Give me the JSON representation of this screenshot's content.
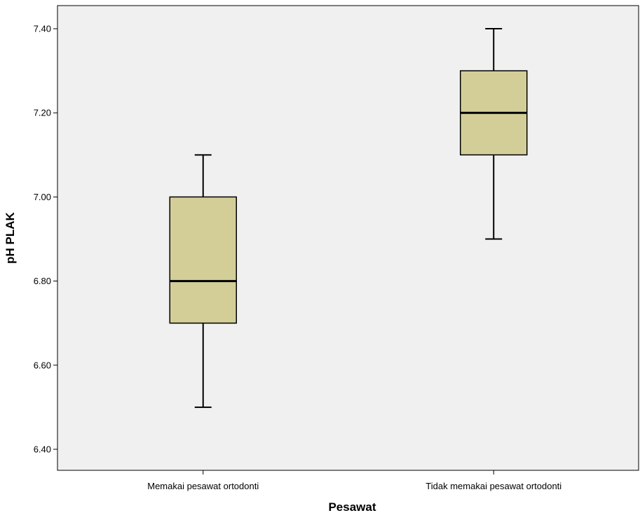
{
  "chart_data": {
    "type": "boxplot",
    "title": "",
    "xlabel": "Pesawat",
    "ylabel": "pH PLAK",
    "ylim": [
      6.35,
      7.455
    ],
    "yticks": [
      "6.40",
      "6.60",
      "6.80",
      "7.00",
      "7.20",
      "7.40"
    ],
    "categories": [
      "Memakai pesawat ortodonti",
      "Tidak memakai pesawat ortodonti"
    ],
    "boxes": [
      {
        "min": 6.5,
        "q1": 6.7,
        "median": 6.8,
        "q3": 7.0,
        "max": 7.1
      },
      {
        "min": 6.9,
        "q1": 7.1,
        "median": 7.2,
        "q3": 7.3,
        "max": 7.4
      }
    ],
    "grid": false,
    "colors": {
      "plot_background": "#f0f0f0",
      "box_fill": "#d3ce97",
      "line": "#000000"
    }
  }
}
